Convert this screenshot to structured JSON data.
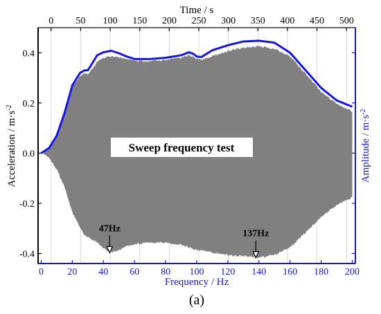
{
  "chart_data": {
    "type": "area",
    "caption": "(a)",
    "annotation_box": "Sweep frequency test",
    "annotations": [
      {
        "text": "47Hz",
        "x": 44,
        "y": -0.4
      },
      {
        "text": "137Hz",
        "x": 138,
        "y": -0.42
      }
    ],
    "axes": {
      "x_bottom": {
        "label": "Frequency / Hz",
        "range": [
          -2,
          202
        ],
        "ticks": [
          0,
          20,
          40,
          60,
          80,
          100,
          120,
          140,
          160,
          180,
          200
        ],
        "color": "#1515c8"
      },
      "x_top": {
        "label": "Time / s",
        "range": [
          -22,
          515
        ],
        "ticks": [
          0,
          50,
          100,
          150,
          200,
          250,
          300,
          350,
          400,
          450,
          500
        ],
        "color": "#000000"
      },
      "y_left": {
        "label": "Acceleration / m·s",
        "label_sup": "-2",
        "range": [
          -0.44,
          0.5
        ],
        "ticks": [
          -0.4,
          -0.2,
          0.0,
          0.2,
          0.4
        ],
        "tick_labels": [
          "-0.4",
          "-0.2",
          "0.0",
          "0.2",
          "0.4"
        ],
        "color": "#000000"
      },
      "y_right": {
        "label": "Amplitude / m·s",
        "label_sup": "-2",
        "color": "#1515c8"
      }
    },
    "grid": {
      "vertical": true,
      "horizontal": false
    },
    "series": [
      {
        "kind": "signal-envelope-area",
        "color": "#808080",
        "x": [
          0,
          5,
          10,
          15,
          20,
          25,
          28,
          30,
          33,
          36,
          40,
          45,
          50,
          55,
          60,
          70,
          80,
          90,
          95,
          100,
          103,
          110,
          120,
          130,
          140,
          150,
          160,
          170,
          180,
          190,
          200
        ],
        "upper": [
          0.0,
          0.02,
          0.07,
          0.16,
          0.27,
          0.31,
          0.32,
          0.32,
          0.34,
          0.37,
          0.385,
          0.39,
          0.385,
          0.38,
          0.37,
          0.37,
          0.375,
          0.385,
          0.395,
          0.38,
          0.375,
          0.39,
          0.41,
          0.425,
          0.43,
          0.42,
          0.39,
          0.32,
          0.25,
          0.2,
          0.17
        ],
        "lower": [
          0.0,
          -0.02,
          -0.07,
          -0.14,
          -0.24,
          -0.3,
          -0.33,
          -0.34,
          -0.35,
          -0.36,
          -0.385,
          -0.4,
          -0.39,
          -0.375,
          -0.365,
          -0.36,
          -0.36,
          -0.37,
          -0.38,
          -0.39,
          -0.39,
          -0.4,
          -0.41,
          -0.415,
          -0.42,
          -0.41,
          -0.38,
          -0.32,
          -0.26,
          -0.21,
          -0.18
        ]
      },
      {
        "kind": "amplitude-line",
        "color": "#1515e0",
        "x": [
          0,
          5,
          10,
          15,
          20,
          25,
          28,
          30,
          33,
          36,
          40,
          45,
          50,
          55,
          60,
          70,
          80,
          90,
          95,
          98,
          100,
          103,
          110,
          120,
          130,
          140,
          150,
          160,
          170,
          180,
          190,
          200
        ],
        "y": [
          0.0,
          0.02,
          0.07,
          0.16,
          0.27,
          0.32,
          0.33,
          0.33,
          0.36,
          0.39,
          0.402,
          0.408,
          0.398,
          0.385,
          0.375,
          0.375,
          0.38,
          0.39,
          0.402,
          0.395,
          0.385,
          0.383,
          0.41,
          0.43,
          0.445,
          0.448,
          0.44,
          0.4,
          0.33,
          0.26,
          0.21,
          0.185
        ]
      }
    ]
  }
}
